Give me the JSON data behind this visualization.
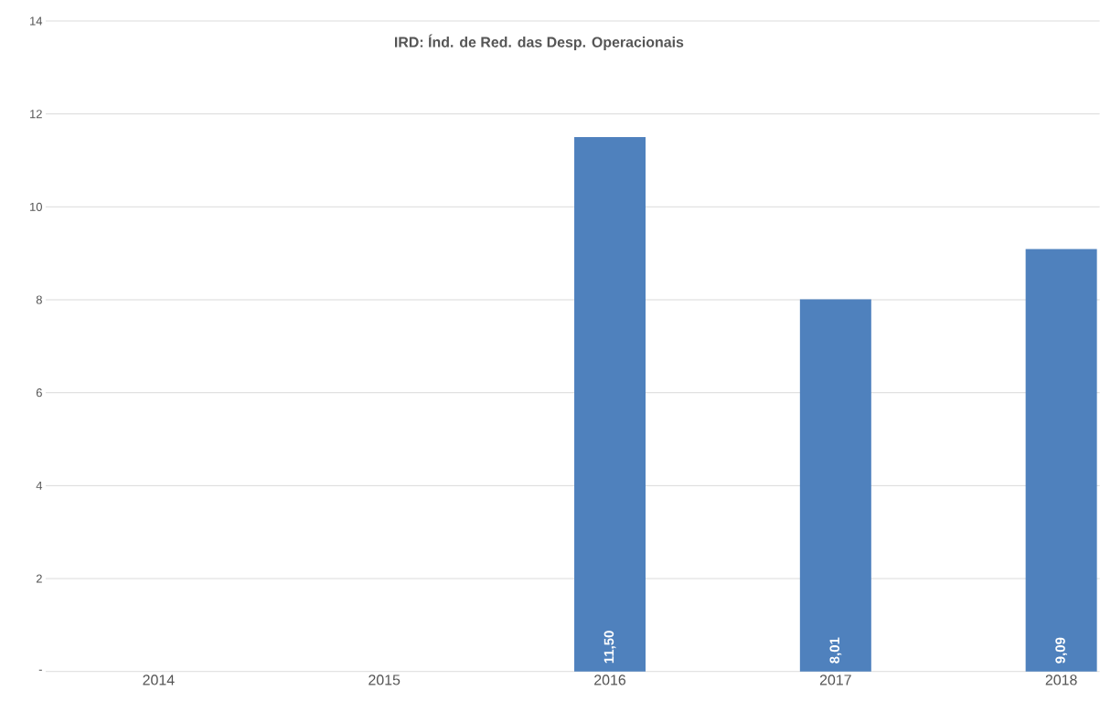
{
  "chart_data": {
    "type": "bar",
    "title": "IRD: Índ. de Red. das Desp. Operacionais",
    "categories": [
      "2014",
      "2015",
      "2016",
      "2017",
      "2018"
    ],
    "series": [
      {
        "color": "#4f81bd",
        "values": [
          null,
          null,
          11.5,
          8.01,
          9.09
        ],
        "value_labels": [
          null,
          null,
          "11,50",
          "8,01",
          "9,09"
        ]
      }
    ],
    "ylim": [
      0,
      14
    ],
    "yticks": [
      {
        "value": 0,
        "label": "-"
      },
      2,
      4,
      6,
      8,
      10,
      12,
      14
    ],
    "grid": "y"
  }
}
